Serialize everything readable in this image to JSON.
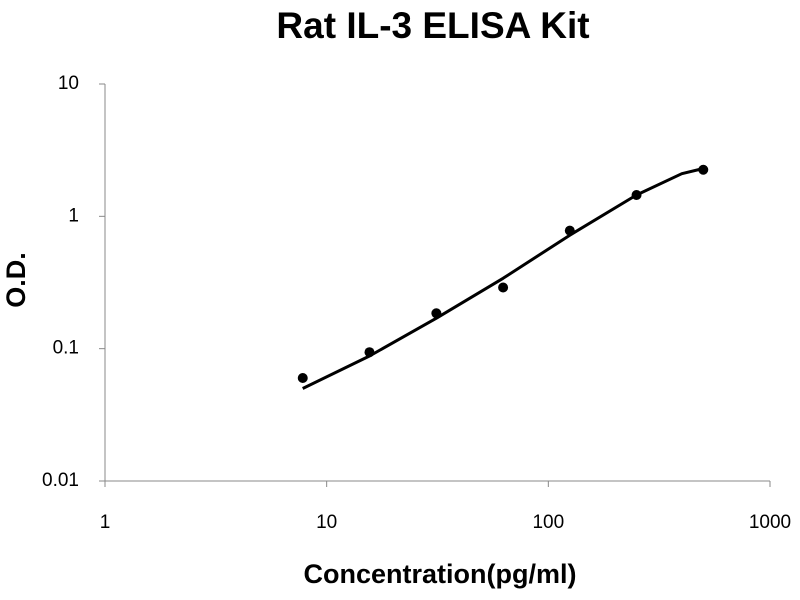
{
  "chart_data": {
    "type": "scatter",
    "title": "Rat IL-3 ELISA Kit",
    "x_label": "Concentration(pg/ml)",
    "y_label": "O.D.",
    "xscale": "log",
    "yscale": "log",
    "xlim": [
      1,
      1000
    ],
    "xticks": [
      1,
      10,
      100,
      1000
    ],
    "ylim": [
      0.01,
      10
    ],
    "yticks": [
      0.01,
      0.1,
      1,
      10
    ],
    "grid": false,
    "series": [
      {
        "type": "scatter",
        "color": "#000000",
        "x": [
          7.8,
          15.6,
          31.25,
          62.5,
          125,
          250,
          500
        ],
        "values": [
          0.06,
          0.094,
          0.185,
          0.29,
          0.78,
          1.45,
          2.25
        ]
      },
      {
        "type": "line",
        "color": "#000000",
        "x": [
          7.8,
          15.6,
          31.25,
          62.5,
          125,
          250,
          400,
          500
        ],
        "values": [
          0.05,
          0.088,
          0.17,
          0.34,
          0.72,
          1.45,
          2.1,
          2.3
        ]
      }
    ]
  }
}
